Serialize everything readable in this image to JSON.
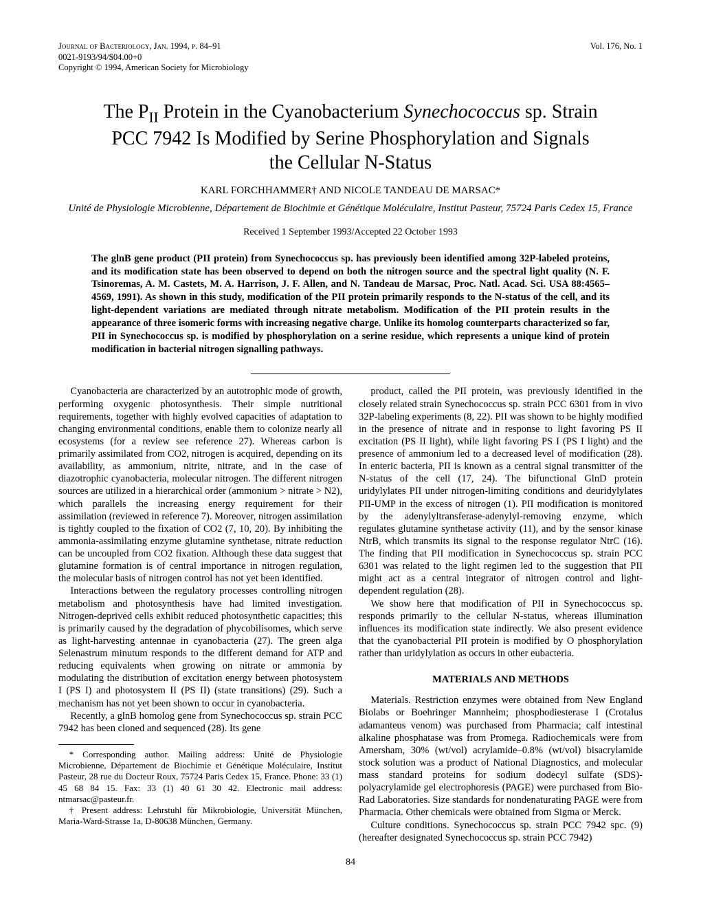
{
  "header": {
    "journal": "Journal of Bacteriology, Jan. 1994, p. 84–91",
    "issn": "0021-9193/94/$04.00+0",
    "copyright": "Copyright © 1994, American Society for Microbiology",
    "volume": "Vol. 176, No. 1"
  },
  "title_line1": "The P",
  "title_line1b": " Protein in the Cyanobacterium ",
  "title_species": "Synechococcus",
  "title_line1c": " sp. Strain",
  "title_line2": "PCC 7942 Is Modified by Serine Phosphorylation and Signals",
  "title_line3": "the Cellular N-Status",
  "authors": "KARL FORCHHAMMER† AND NICOLE TANDEAU DE MARSAC*",
  "affil": "Unité de Physiologie Microbienne, Département de Biochimie et Génétique Moléculaire, Institut Pasteur, 75724 Paris Cedex 15, France",
  "dates": "Received 1 September 1993/Accepted 22 October 1993",
  "abstract": "The glnB gene product (PII protein) from Synechococcus sp. has previously been identified among 32P-labeled proteins, and its modification state has been observed to depend on both the nitrogen source and the spectral light quality (N. F. Tsinoremas, A. M. Castets, M. A. Harrison, J. F. Allen, and N. Tandeau de Marsac, Proc. Natl. Acad. Sci. USA 88:4565–4569, 1991). As shown in this study, modification of the PII protein primarily responds to the N-status of the cell, and its light-dependent variations are mediated through nitrate metabolism. Modification of the PII protein results in the appearance of three isomeric forms with increasing negative charge. Unlike its homolog counterparts characterized so far, PII in Synechococcus sp. is modified by phosphorylation on a serine residue, which represents a unique kind of protein modification in bacterial nitrogen signalling pathways.",
  "left_col": {
    "p1": "Cyanobacteria are characterized by an autotrophic mode of growth, performing oxygenic photosynthesis. Their simple nutritional requirements, together with highly evolved capacities of adaptation to changing environmental conditions, enable them to colonize nearly all ecosystems (for a review see reference 27). Whereas carbon is primarily assimilated from CO2, nitrogen is acquired, depending on its availability, as ammonium, nitrite, nitrate, and in the case of diazotrophic cyanobacteria, molecular nitrogen. The different nitrogen sources are utilized in a hierarchical order (ammonium > nitrate > N2), which parallels the increasing energy requirement for their assimilation (reviewed in reference 7). Moreover, nitrogen assimilation is tightly coupled to the fixation of CO2 (7, 10, 20). By inhibiting the ammonia-assimilating enzyme glutamine synthetase, nitrate reduction can be uncoupled from CO2 fixation. Although these data suggest that glutamine formation is of central importance in nitrogen regulation, the molecular basis of nitrogen control has not yet been identified.",
    "p2": "Interactions between the regulatory processes controlling nitrogen metabolism and photosynthesis have had limited investigation. Nitrogen-deprived cells exhibit reduced photosynthetic capacities; this is primarily caused by the degradation of phycobilisomes, which serve as light-harvesting antennae in cyanobacteria (27). The green alga Selenastrum minutum responds to the different demand for ATP and reducing equivalents when growing on nitrate or ammonia by modulating the distribution of excitation energy between photosystem I (PS I) and photosystem II (PS II) (state transitions) (29). Such a mechanism has not yet been shown to occur in cyanobacteria.",
    "p3": "Recently, a glnB homolog gene from Synechococcus sp. strain PCC 7942 has been cloned and sequenced (28). Its gene"
  },
  "right_col": {
    "p1": "product, called the PII protein, was previously identified in the closely related strain Synechococcus sp. strain PCC 6301 from in vivo 32P-labeling experiments (8, 22). PII was shown to be highly modified in the presence of nitrate and in response to light favoring PS II excitation (PS II light), while light favoring PS I (PS I light) and the presence of ammonium led to a decreased level of modification (28). In enteric bacteria, PII is known as a central signal transmitter of the N-status of the cell (17, 24). The bifunctional GlnD protein uridylylates PII under nitrogen-limiting conditions and deuridylylates PII-UMP in the excess of nitrogen (1). PII modification is monitored by the adenylyltransferase-adenylyl-removing enzyme, which regulates glutamine synthetase activity (11), and by the sensor kinase NtrB, which transmits its signal to the response regulator NtrC (16). The finding that PII modification in Synechococcus sp. strain PCC 6301 was related to the light regimen led to the suggestion that PII might act as a central integrator of nitrogen control and light-dependent regulation (28).",
    "p2": "We show here that modification of PII in Synechococcus sp. responds primarily to the cellular N-status, whereas illumination influences its modification state indirectly. We also present evidence that the cyanobacterial PII protein is modified by O phosphorylation rather than uridylylation as occurs in other eubacteria.",
    "section_head": "MATERIALS AND METHODS",
    "p3": "Materials. Restriction enzymes were obtained from New England Biolabs or Boehringer Mannheim; phosphodiesterase I (Crotalus adamanteus venom) was purchased from Pharmacia; calf intestinal alkaline phosphatase was from Promega. Radiochemicals were from Amersham, 30% (wt/vol) acrylamide–0.8% (wt/vol) bisacrylamide stock solution was a product of National Diagnostics, and molecular mass standard proteins for sodium dodecyl sulfate (SDS)-polyacrylamide gel electrophoresis (PAGE) were purchased from Bio-Rad Laboratories. Size standards for nondenaturating PAGE were from Pharmacia. Other chemicals were obtained from Sigma or Merck.",
    "p4": "Culture conditions. Synechococcus sp. strain PCC 7942 spc. (9) (hereafter designated Synechococcus sp. strain PCC 7942)"
  },
  "footnotes": {
    "f1": "* Corresponding author. Mailing address: Unité de Physiologie Microbienne, Département de Biochimie et Génétique Moléculaire, Institut Pasteur, 28 rue du Docteur Roux, 75724 Paris Cedex 15, France. Phone: 33 (1) 45 68 84 15. Fax: 33 (1) 40 61 30 42. Electronic mail address: ntmarsac@pasteur.fr.",
    "f2": "† Present address: Lehrstuhl für Mikrobiologie, Universität München, Maria-Ward-Strasse 1a, D-80638 München, Germany."
  },
  "pagenum": "84"
}
